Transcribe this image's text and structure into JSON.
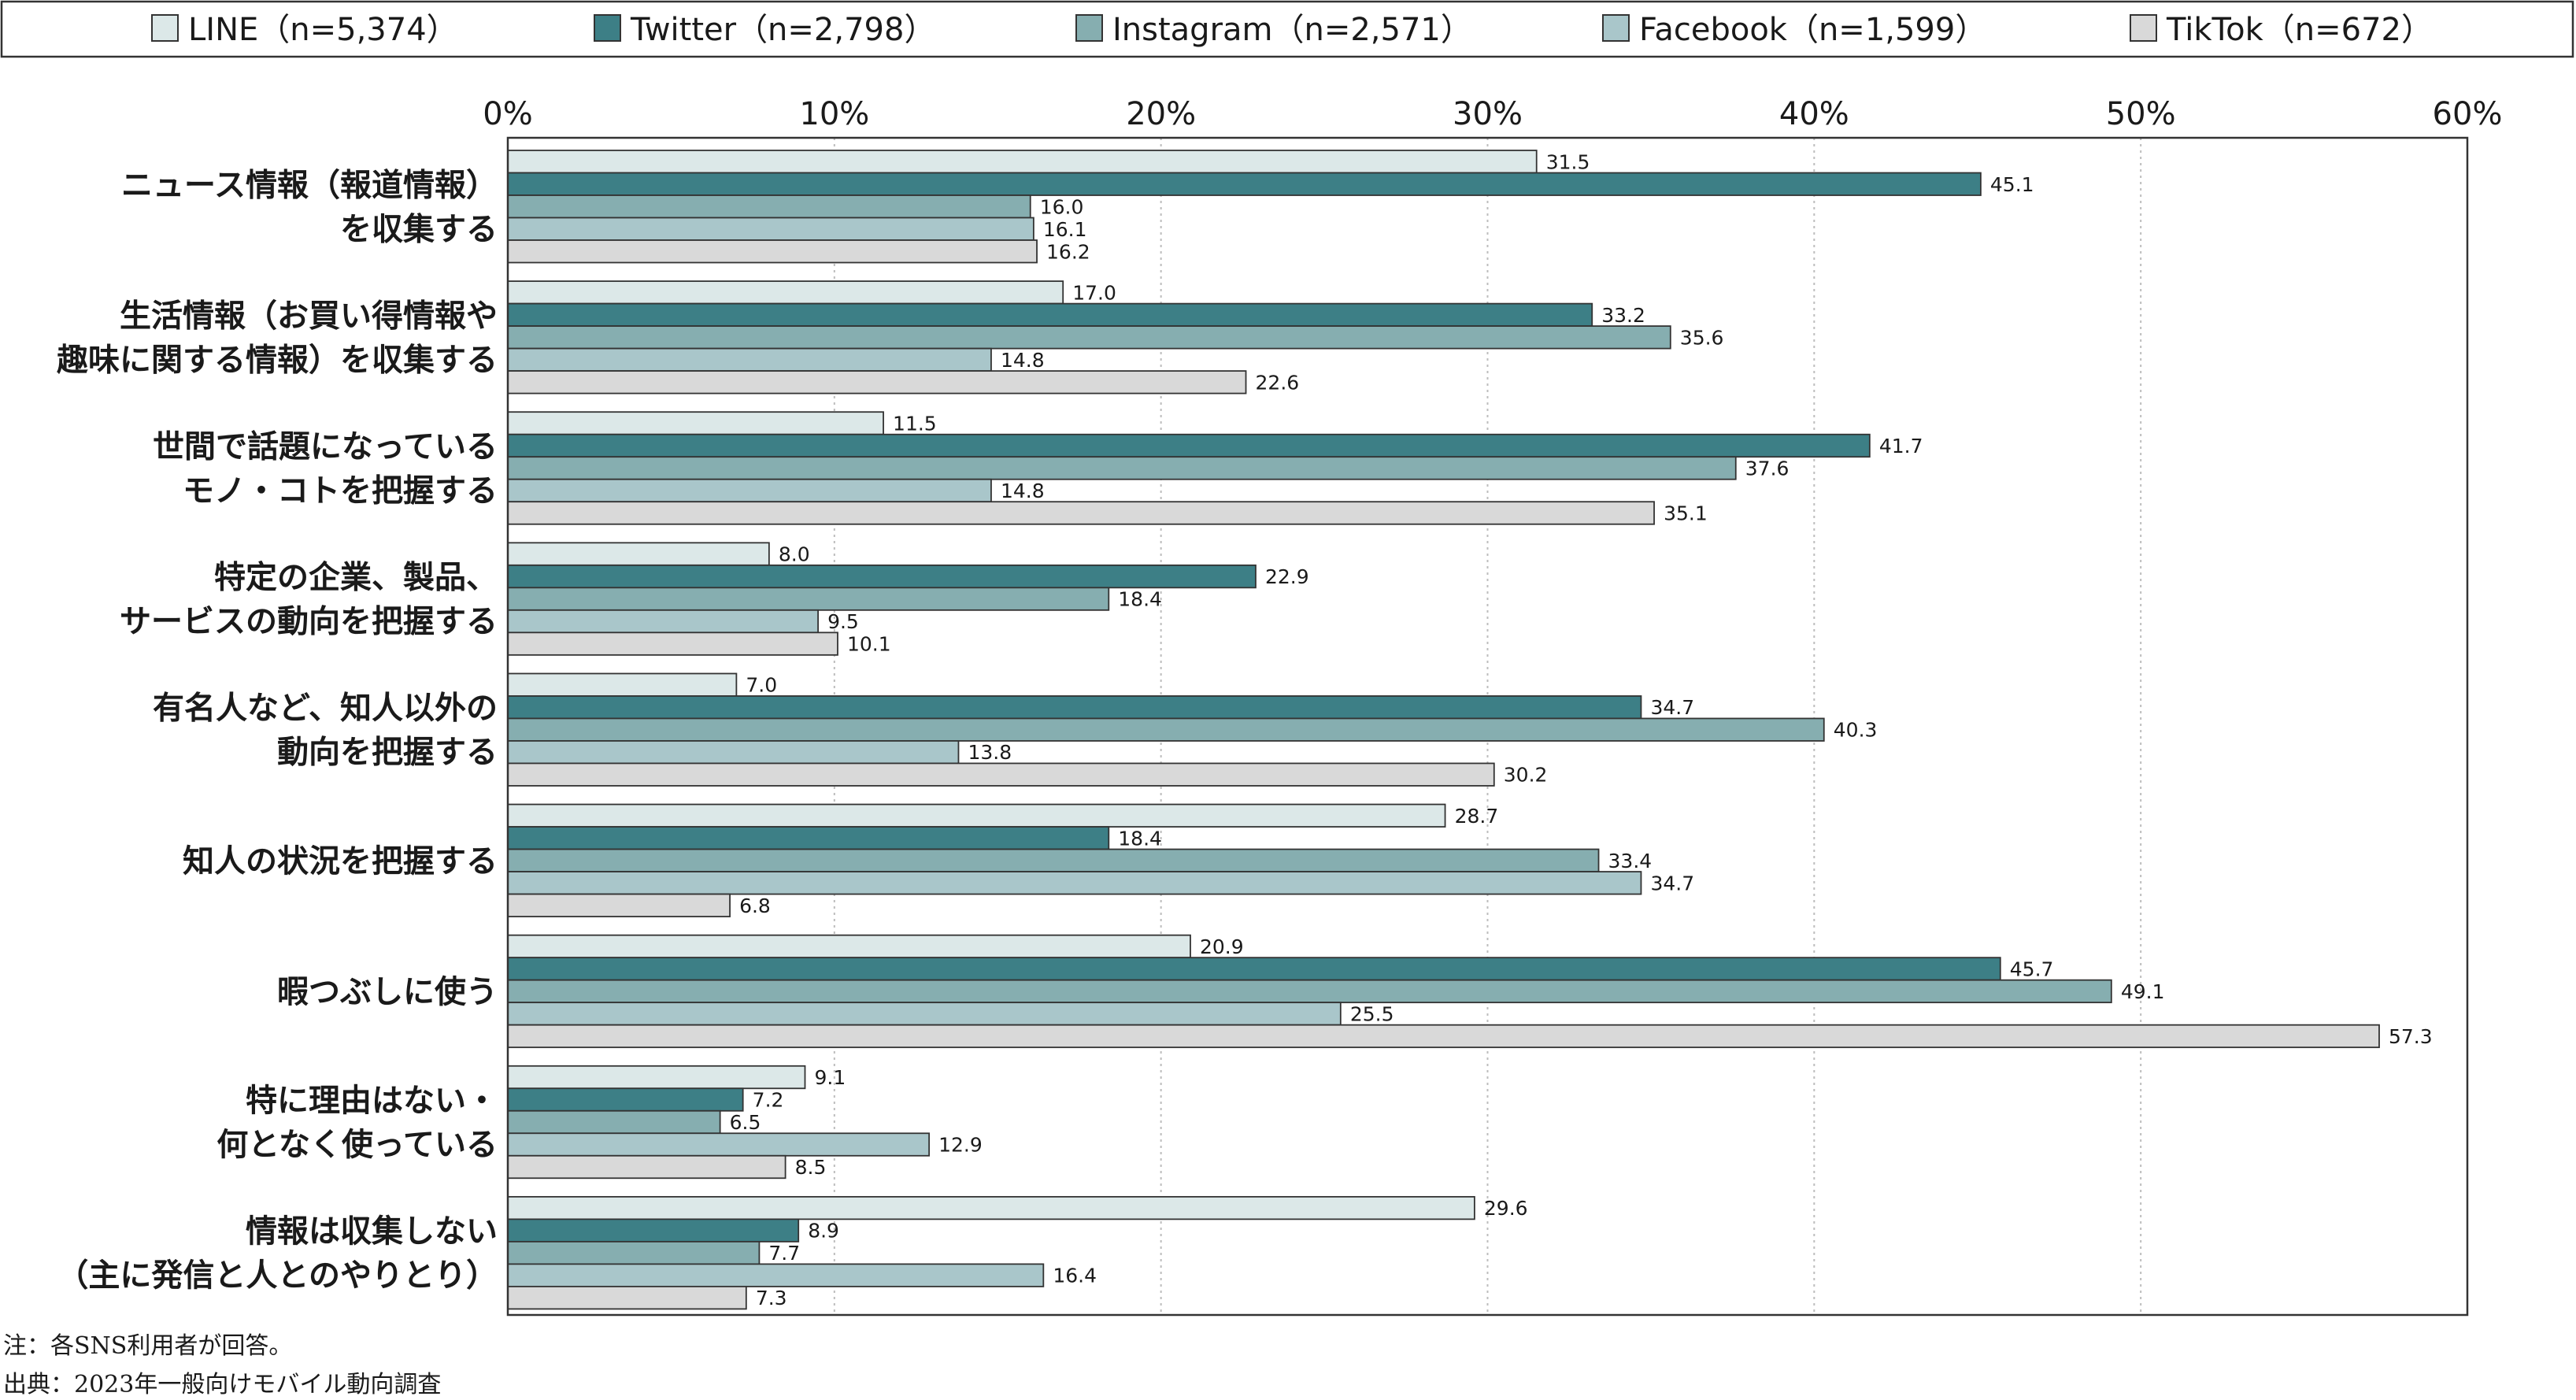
{
  "chart_data": {
    "type": "bar",
    "orientation": "horizontal",
    "categories": [
      [
        "ニュース情報（報道情報）",
        "を収集する"
      ],
      [
        "生活情報（お買い得情報や",
        "趣味に関する情報）を収集する"
      ],
      [
        "世間で話題になっている",
        "モノ・コトを把握する"
      ],
      [
        "特定の企業、製品、",
        "サービスの動向を把握する"
      ],
      [
        "有名人など、知人以外の",
        "動向を把握する"
      ],
      [
        "知人の状況を把握する"
      ],
      [
        "暇つぶしに使う"
      ],
      [
        "特に理由はない・",
        "何となく使っている"
      ],
      [
        "情報は収集しない",
        "（主に発信と人とのやりとり）"
      ]
    ],
    "series": [
      {
        "name": "LINE（n=5,374）",
        "color": "#dce8e8",
        "values": [
          31.5,
          17.0,
          11.5,
          8.0,
          7.0,
          28.7,
          20.9,
          9.1,
          29.6
        ]
      },
      {
        "name": "Twitter（n=2,798）",
        "color": "#3d7f86",
        "values": [
          45.1,
          33.2,
          41.7,
          22.9,
          34.7,
          18.4,
          45.7,
          7.2,
          8.9
        ]
      },
      {
        "name": "Instagram（n=2,571）",
        "color": "#86aeb0",
        "values": [
          16.0,
          35.6,
          37.6,
          18.4,
          40.3,
          33.4,
          49.1,
          6.5,
          7.7
        ]
      },
      {
        "name": "Facebook（n=1,599）",
        "color": "#a9c6ca",
        "values": [
          16.1,
          14.8,
          14.8,
          9.5,
          13.8,
          34.7,
          25.5,
          12.9,
          16.4
        ]
      },
      {
        "name": "TikTok（n=672）",
        "color": "#d9d9d9",
        "values": [
          16.2,
          22.6,
          35.1,
          10.1,
          30.2,
          6.8,
          57.3,
          8.5,
          7.3
        ]
      }
    ],
    "xticks": [
      "0%",
      "10%",
      "20%",
      "30%",
      "40%",
      "50%",
      "60%"
    ],
    "xlim": [
      0,
      60
    ],
    "value_labels": [
      [
        "31.5",
        "17.0",
        "11.5",
        "8.0",
        "7.0",
        "28.7",
        "20.9",
        "9.1",
        "29.6"
      ],
      [
        "45.1",
        "33.2",
        "41.7",
        "22.9",
        "34.7",
        "18.4",
        "45.7",
        "7.2",
        "8.9"
      ],
      [
        "16.0",
        "35.6",
        "37.6",
        "18.4",
        "40.3",
        "33.4",
        "49.1",
        "6.5",
        "7.7"
      ],
      [
        "16.1",
        "14.8",
        "14.8",
        "9.5",
        "13.8",
        "34.7",
        "25.5",
        "12.9",
        "16.4"
      ],
      [
        "16.2",
        "22.6",
        "35.1",
        "10.1",
        "30.2",
        "6.8",
        "57.3",
        "8.5",
        "7.3"
      ]
    ],
    "grid": true,
    "legend_position": "top",
    "border_color": "#333333",
    "grid_color": "#bdbdbd"
  },
  "notes": {
    "note": "注：各SNS利用者が回答。",
    "source": "出典：2023年一般向けモバイル動向調査"
  }
}
